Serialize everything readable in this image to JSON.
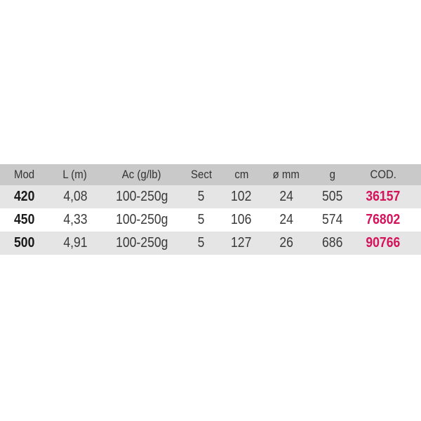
{
  "colors": {
    "code": "#d4145a",
    "header_bg": "#c9c9c9",
    "stripe_bg": "#e5e5e5"
  },
  "table": {
    "headers": [
      "Mod",
      "L (m)",
      "Ac (g/lb)",
      "Sect",
      "cm",
      "ø mm",
      "g",
      "COD."
    ],
    "rows": [
      [
        "420",
        "4,08",
        "100-250g",
        "5",
        "102",
        "24",
        "505",
        "36157"
      ],
      [
        "450",
        "4,33",
        "100-250g",
        "5",
        "106",
        "24",
        "574",
        "76802"
      ],
      [
        "500",
        "4,91",
        "100-250g",
        "5",
        "127",
        "26",
        "686",
        "90766"
      ]
    ]
  }
}
